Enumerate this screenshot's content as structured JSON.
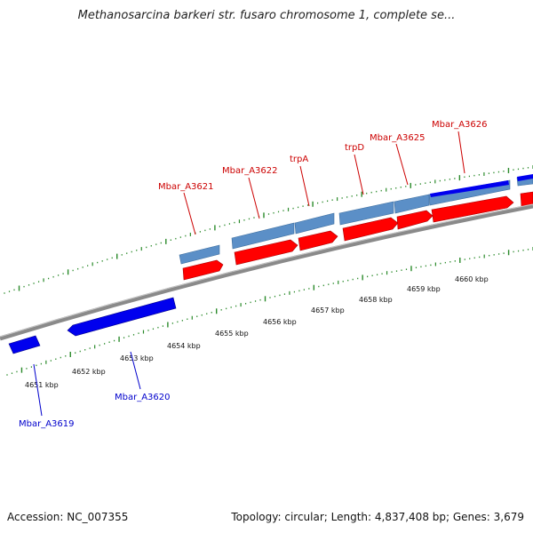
{
  "title": "Methanosarcina barkeri str. fusaro chromosome 1, complete se...",
  "footer": {
    "accession": "Accession: NC_007355",
    "summary": "Topology: circular; Length: 4,837,408 bp; Genes: 3,679"
  },
  "colors": {
    "forward_gene": "#ff0000",
    "forward_cds": "#5b8fc7",
    "reverse_gene": "#0000ff",
    "forward_label": "#cc0000",
    "reverse_label": "#0000cc",
    "tick_major": "#2a8a2a",
    "backbone": "#888888"
  },
  "axis": {
    "unit": "kbp",
    "labels": [
      "4651 kbp",
      "4652 kbp",
      "4653 kbp",
      "4654 kbp",
      "4655 kbp",
      "4656 kbp",
      "4657 kbp",
      "4658 kbp",
      "4659 kbp",
      "4660 kbp"
    ]
  },
  "forward_labels": [
    "Mbar_A3621",
    "Mbar_A3622",
    "trpA",
    "trpD",
    "Mbar_A3625",
    "Mbar_A3626"
  ],
  "reverse_labels": [
    "Mbar_A3619",
    "Mbar_A3620"
  ]
}
